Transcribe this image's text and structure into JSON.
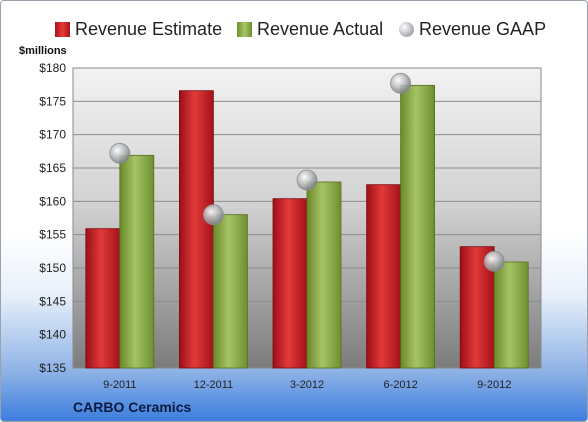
{
  "chart_data": {
    "type": "bar",
    "categories": [
      "9-2011",
      "12-2011",
      "3-2012",
      "6-2012",
      "9-2012"
    ],
    "series": [
      {
        "name": "Revenue Estimate",
        "kind": "bar",
        "values": [
          155.9,
          176.6,
          160.4,
          162.5,
          153.2
        ]
      },
      {
        "name": "Revenue Actual",
        "kind": "bar",
        "values": [
          166.9,
          158.0,
          162.9,
          177.4,
          150.9
        ]
      },
      {
        "name": "Revenue GAAP",
        "kind": "point",
        "values": [
          167.2,
          158.0,
          163.2,
          177.7,
          151.0
        ]
      }
    ],
    "ylabel": "$millions",
    "ylim": [
      135,
      180
    ],
    "yticks": [
      135,
      140,
      145,
      150,
      155,
      160,
      165,
      170,
      175,
      180
    ],
    "ytick_labels": [
      "$135",
      "$140",
      "$145",
      "$150",
      "$155",
      "$160",
      "$165",
      "$170",
      "$175",
      "$180"
    ],
    "grid": true,
    "legend_position": "top",
    "colors": {
      "estimate": "#d01b22",
      "actual": "#8fb04a",
      "gaap": "#b9bcc0"
    }
  },
  "footer": {
    "company": "CARBO Ceramics"
  }
}
